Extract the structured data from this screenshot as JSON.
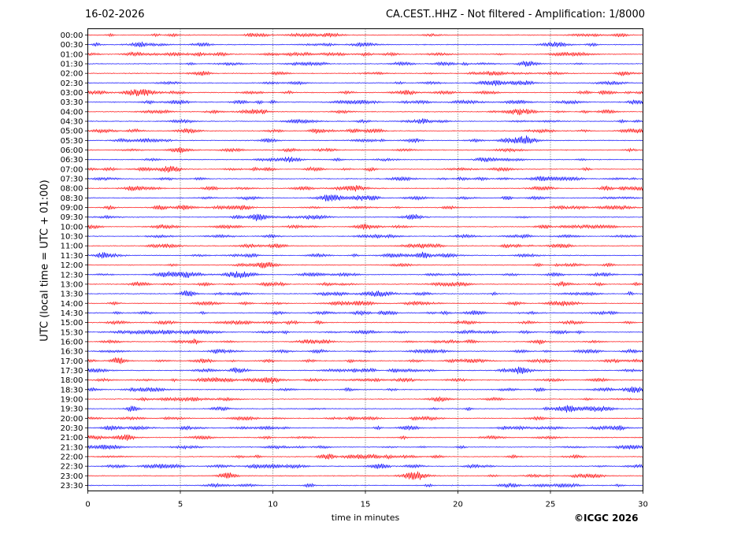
{
  "header": {
    "date": "16-02-2026",
    "title": "CA.CEST..HHZ - Not filtered - Amplification: 1/8000"
  },
  "footer": {
    "credit": "©ICGC 2026"
  },
  "chart_data": {
    "type": "line",
    "title": "CA.CEST..HHZ - Not filtered - Amplification: 1/8000",
    "xlabel": "time in minutes",
    "ylabel": "UTC (local time = UTC + 01:00)",
    "xlim": [
      0,
      30
    ],
    "x_ticks": [
      0,
      5,
      10,
      15,
      20,
      25,
      30
    ],
    "grid": "vertical dotted lines at x ticks",
    "row_labels": [
      "00:00",
      "00:30",
      "01:00",
      "01:30",
      "02:00",
      "02:30",
      "03:00",
      "03:30",
      "04:00",
      "04:30",
      "05:00",
      "05:30",
      "06:00",
      "06:30",
      "07:00",
      "07:30",
      "08:00",
      "08:30",
      "09:00",
      "09:30",
      "10:00",
      "10:30",
      "11:00",
      "11:30",
      "12:00",
      "12:30",
      "13:00",
      "13:30",
      "14:00",
      "14:30",
      "15:00",
      "15:30",
      "16:00",
      "16:30",
      "17:00",
      "17:30",
      "18:00",
      "18:30",
      "19:00",
      "19:30",
      "20:00",
      "20:30",
      "21:00",
      "21:30",
      "22:00",
      "22:30",
      "23:00",
      "23:30"
    ],
    "trace_colors": [
      "#ff0000",
      "#0000ff"
    ],
    "y_order": "00:00 at top, 23:30 at bottom"
  }
}
